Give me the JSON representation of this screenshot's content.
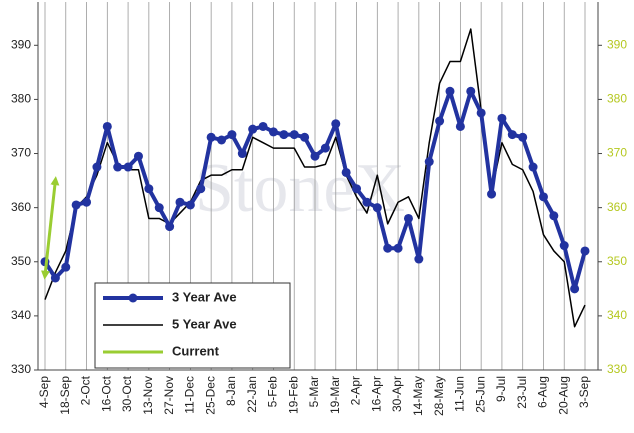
{
  "chart_data": {
    "type": "line",
    "watermark": "StoneX",
    "categories": [
      "4-Sep",
      null,
      "18-Sep",
      null,
      "2-Oct",
      null,
      "16-Oct",
      null,
      "30-Oct",
      null,
      "13-Nov",
      null,
      "27-Nov",
      null,
      "11-Dec",
      null,
      "25-Dec",
      null,
      "8-Jan",
      null,
      "22-Jan",
      null,
      "5-Feb",
      null,
      "19-Feb",
      null,
      "5-Mar",
      null,
      "19-Mar",
      null,
      "2-Apr",
      null,
      "16-Apr",
      null,
      "30-Apr",
      null,
      "14-May",
      null,
      "28-May",
      null,
      "11-Jun",
      null,
      "25-Jun",
      null,
      "9-Jul",
      null,
      "23-Jul",
      null,
      "6-Aug",
      null,
      "20-Aug",
      null,
      "3-Sep"
    ],
    "series": [
      {
        "name": "3 Year Ave",
        "color": "#2233a0",
        "marker": true,
        "values": [
          350,
          347,
          349,
          360.5,
          361,
          367.5,
          375,
          367.5,
          367.5,
          369.5,
          363.5,
          360,
          356.5,
          361,
          360.5,
          363.5,
          373,
          372.5,
          373.5,
          370,
          374.5,
          375,
          374,
          373.5,
          373.5,
          373,
          369.5,
          371,
          375.5,
          366.5,
          363.5,
          361,
          360,
          352.5,
          352.5,
          358,
          350.5,
          368.5,
          376,
          381.5,
          375,
          381.5,
          377.5,
          362.5,
          376.5,
          373.5,
          373,
          367.5,
          362,
          358.5,
          353,
          345,
          352
        ]
      },
      {
        "name": "5 Year Ave",
        "color": "#000000",
        "marker": false,
        "values": [
          343,
          348,
          352,
          360,
          362,
          366,
          372,
          368,
          367,
          367,
          358,
          358,
          357,
          359,
          361,
          365,
          366,
          366,
          367,
          367,
          373,
          372,
          371,
          371,
          371,
          367.5,
          367.5,
          368,
          373,
          366,
          362,
          359,
          366,
          357,
          361,
          362,
          358,
          372,
          383,
          387,
          387,
          393,
          378,
          363,
          372,
          368,
          367,
          363,
          355,
          352,
          350,
          338,
          342
        ]
      },
      {
        "name": "Current",
        "color": "#9acd32",
        "marker": false,
        "values": [
          347.5,
          365,
          null,
          null,
          null,
          null,
          null,
          null,
          null,
          null,
          null,
          null,
          null,
          null,
          null,
          null,
          null,
          null,
          null,
          null,
          null,
          null,
          null,
          null,
          null,
          null,
          null,
          null,
          null,
          null,
          null,
          null,
          null,
          null,
          null,
          null,
          null,
          null,
          null,
          null,
          null,
          null,
          null,
          null,
          null,
          null,
          null,
          null,
          null,
          null,
          null,
          null,
          null
        ]
      }
    ],
    "ylim": [
      330,
      398
    ],
    "yticks": [
      330,
      340,
      350,
      360,
      370,
      380,
      390
    ],
    "y2lim": [
      330,
      398
    ],
    "y2ticks": [
      330,
      340,
      350,
      360,
      370,
      380,
      390
    ],
    "y2color": "#b5c820",
    "grid": "x"
  }
}
